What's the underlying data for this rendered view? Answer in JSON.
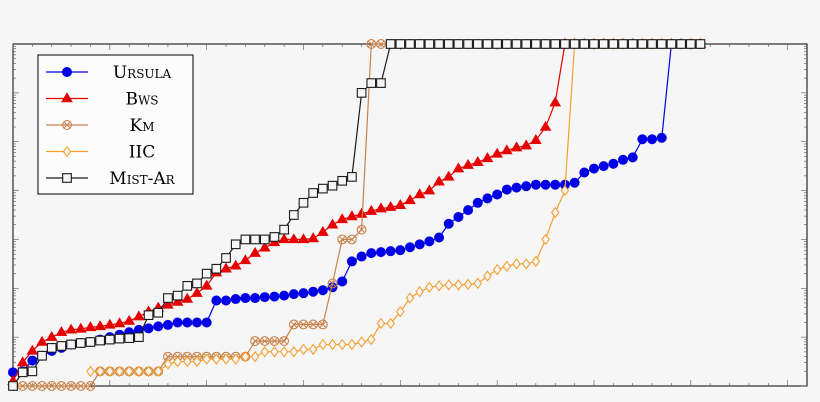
{
  "chart_data": {
    "type": "line",
    "title": "",
    "xlabel": "",
    "ylabel": "",
    "xlim": [
      0,
      82
    ],
    "ylim": [
      0,
      7
    ],
    "grid": false,
    "legend_position": "top-left",
    "series": [
      {
        "name": "Ursula",
        "color": "#0000e6",
        "marker": "filled-circle",
        "x": [
          0,
          1,
          2,
          3,
          4,
          5,
          6,
          7,
          8,
          9,
          10,
          11,
          12,
          13,
          14,
          15,
          16,
          17,
          18,
          19,
          20,
          21,
          22,
          23,
          24,
          25,
          26,
          27,
          28,
          29,
          30,
          31,
          32,
          33,
          34,
          35,
          36,
          37,
          38,
          39,
          40,
          41,
          42,
          43,
          44,
          45,
          46,
          47,
          48,
          49,
          50,
          51,
          52,
          53,
          54,
          55,
          56,
          57,
          58,
          59,
          60,
          61,
          62,
          63,
          64,
          65,
          66,
          67,
          68,
          69,
          70,
          71
        ],
        "y": [
          0.28,
          0.3,
          0.52,
          0.62,
          0.72,
          0.78,
          0.85,
          0.88,
          0.9,
          0.95,
          1.0,
          1.05,
          1.1,
          1.15,
          1.18,
          1.22,
          1.25,
          1.3,
          1.3,
          1.3,
          1.3,
          1.75,
          1.75,
          1.78,
          1.8,
          1.8,
          1.82,
          1.83,
          1.85,
          1.88,
          1.9,
          1.93,
          1.96,
          2.02,
          2.14,
          2.55,
          2.65,
          2.72,
          2.74,
          2.76,
          2.78,
          2.84,
          2.9,
          2.96,
          3.04,
          3.32,
          3.46,
          3.6,
          3.75,
          3.84,
          3.92,
          4.02,
          4.06,
          4.09,
          4.12,
          4.12,
          4.12,
          4.12,
          4.16,
          4.37,
          4.45,
          4.5,
          4.55,
          4.63,
          4.68,
          5.05,
          5.05,
          5.08,
          7,
          7,
          7,
          7
        ]
      },
      {
        "name": "Bws",
        "color": "#e60000",
        "marker": "filled-triangle",
        "x": [
          0,
          1,
          2,
          3,
          4,
          5,
          6,
          7,
          8,
          9,
          10,
          11,
          12,
          13,
          14,
          15,
          16,
          17,
          18,
          19,
          20,
          21,
          22,
          23,
          24,
          25,
          26,
          27,
          28,
          29,
          30,
          31,
          32,
          33,
          34,
          35,
          36,
          37,
          38,
          39,
          40,
          41,
          42,
          43,
          44,
          45,
          46,
          47,
          48,
          49,
          50,
          51,
          52,
          53,
          54,
          55,
          56,
          57,
          58,
          59,
          60,
          61,
          62,
          63,
          64,
          65,
          66,
          67,
          68,
          69,
          70,
          71
        ],
        "y": [
          0.1,
          0.48,
          0.72,
          0.9,
          1.0,
          1.1,
          1.15,
          1.17,
          1.2,
          1.22,
          1.25,
          1.28,
          1.33,
          1.42,
          1.52,
          1.6,
          1.66,
          1.72,
          1.78,
          1.9,
          2.05,
          2.32,
          2.4,
          2.46,
          2.57,
          2.72,
          2.83,
          2.94,
          3.0,
          3.0,
          3.0,
          3.02,
          3.15,
          3.3,
          3.41,
          3.47,
          3.52,
          3.58,
          3.63,
          3.66,
          3.7,
          3.8,
          3.92,
          4.0,
          4.18,
          4.28,
          4.45,
          4.52,
          4.58,
          4.66,
          4.75,
          4.82,
          4.88,
          4.92,
          5.03,
          5.3,
          5.8,
          7,
          7,
          7,
          7,
          7,
          7,
          7,
          7,
          7,
          7,
          7,
          7,
          7,
          7,
          7
        ]
      },
      {
        "name": "Km",
        "color": "#c8824b",
        "marker": "crossed-circle",
        "x": [
          0,
          1,
          2,
          3,
          4,
          5,
          6,
          7,
          8,
          9,
          10,
          11,
          12,
          13,
          14,
          15,
          16,
          17,
          18,
          19,
          20,
          21,
          22,
          23,
          24,
          25,
          26,
          27,
          28,
          29,
          30,
          31,
          32,
          33,
          34,
          35,
          36,
          37,
          38,
          39,
          40,
          41,
          42,
          43,
          44,
          45,
          46,
          47,
          48,
          49,
          50,
          51,
          52,
          53,
          54,
          55,
          56,
          57,
          58,
          59,
          60,
          61,
          62,
          63,
          64,
          65,
          66,
          67,
          68,
          69,
          70,
          71
        ],
        "y": [
          0.0,
          0.0,
          0.0,
          0.0,
          0.0,
          0.0,
          0.0,
          0.0,
          0.0,
          0.3,
          0.3,
          0.3,
          0.3,
          0.3,
          0.3,
          0.3,
          0.6,
          0.6,
          0.6,
          0.6,
          0.6,
          0.6,
          0.6,
          0.6,
          0.6,
          0.92,
          0.92,
          0.92,
          0.92,
          1.26,
          1.26,
          1.26,
          1.26,
          2.1,
          3.0,
          3.0,
          3.2,
          7,
          7,
          7,
          7,
          7,
          7,
          7,
          7,
          7,
          7,
          7,
          7,
          7,
          7,
          7,
          7,
          7,
          7,
          7,
          7,
          7,
          7,
          7,
          7,
          7,
          7,
          7,
          7,
          7,
          7,
          7,
          7,
          7,
          7,
          7
        ]
      },
      {
        "name": "IIC",
        "color": "#f3a033",
        "marker": "open-diamond",
        "x": [
          8,
          9,
          10,
          11,
          12,
          13,
          14,
          15,
          16,
          17,
          18,
          19,
          20,
          21,
          22,
          23,
          24,
          25,
          26,
          27,
          28,
          29,
          30,
          31,
          32,
          33,
          34,
          35,
          36,
          37,
          38,
          39,
          40,
          41,
          42,
          43,
          44,
          45,
          46,
          47,
          48,
          49,
          50,
          51,
          52,
          53,
          54,
          55,
          56,
          57,
          58,
          59,
          60,
          61,
          62,
          63,
          64,
          65,
          66,
          67,
          68,
          69,
          70,
          71
        ],
        "y": [
          0.3,
          0.3,
          0.3,
          0.3,
          0.3,
          0.3,
          0.3,
          0.3,
          0.45,
          0.5,
          0.5,
          0.5,
          0.55,
          0.55,
          0.55,
          0.55,
          0.6,
          0.6,
          0.7,
          0.7,
          0.7,
          0.7,
          0.75,
          0.75,
          0.85,
          0.85,
          0.85,
          0.85,
          0.9,
          0.95,
          1.28,
          1.28,
          1.52,
          1.8,
          1.93,
          2.02,
          2.05,
          2.07,
          2.07,
          2.08,
          2.1,
          2.25,
          2.38,
          2.45,
          2.5,
          2.5,
          2.55,
          3.0,
          3.55,
          4.0,
          7,
          7,
          7,
          7,
          7,
          7,
          7,
          7,
          7,
          7,
          7,
          7,
          7,
          7
        ]
      },
      {
        "name": "Mist-Ar",
        "color": "#1a1a1a",
        "marker": "open-square",
        "x": [
          0,
          1,
          2,
          3,
          4,
          5,
          6,
          7,
          8,
          9,
          10,
          11,
          12,
          13,
          14,
          15,
          16,
          17,
          18,
          19,
          20,
          21,
          22,
          23,
          24,
          25,
          26,
          27,
          28,
          29,
          30,
          31,
          32,
          33,
          34,
          35,
          36,
          37,
          38,
          39,
          40,
          41,
          42,
          43,
          44,
          45,
          46,
          47,
          48,
          49,
          50,
          51,
          52,
          53,
          54,
          55,
          56,
          57,
          58,
          59,
          60,
          61,
          62,
          63,
          64,
          65,
          66,
          67,
          68,
          69,
          70,
          71
        ],
        "y": [
          0.0,
          0.28,
          0.3,
          0.62,
          0.78,
          0.82,
          0.85,
          0.88,
          0.9,
          0.93,
          0.95,
          0.97,
          0.98,
          1.0,
          1.45,
          1.5,
          1.8,
          1.85,
          2.05,
          2.1,
          2.3,
          2.4,
          2.62,
          2.9,
          3.0,
          3.0,
          3.0,
          3.05,
          3.2,
          3.5,
          3.75,
          3.95,
          4.04,
          4.1,
          4.2,
          4.28,
          6.0,
          6.2,
          6.2,
          7,
          7,
          7,
          7,
          7,
          7,
          7,
          7,
          7,
          7,
          7,
          7,
          7,
          7,
          7,
          7,
          7,
          7,
          7,
          7,
          7,
          7,
          7,
          7,
          7,
          7,
          7,
          7,
          7,
          7,
          7,
          7,
          7
        ]
      }
    ]
  }
}
